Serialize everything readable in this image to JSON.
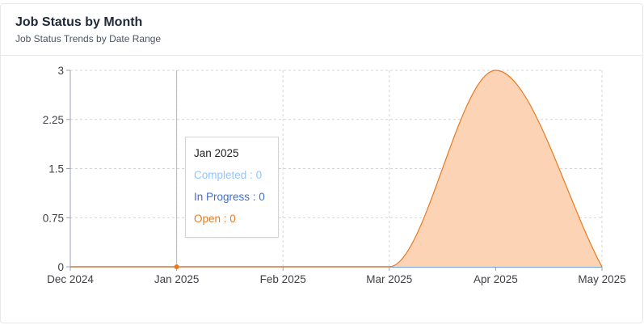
{
  "card": {
    "title": "Job Status by Month",
    "subtitle": "Job Status Trends by Date Range"
  },
  "tooltip": {
    "title": "Jan 2025",
    "rows": [
      {
        "label": "Completed",
        "value": "0",
        "color": "#93c5fd"
      },
      {
        "label": "In Progress",
        "value": "0",
        "color": "#3b6fd6"
      },
      {
        "label": "Open",
        "value": "0",
        "color": "#ea7a1f"
      }
    ]
  },
  "chart_data": {
    "type": "area",
    "x": [
      "Dec 2024",
      "Jan 2025",
      "Feb 2025",
      "Mar 2025",
      "Apr 2025",
      "May 2025"
    ],
    "y_ticks": [
      "0",
      "0.75",
      "1.5",
      "2.25",
      "3"
    ],
    "ylim": [
      0,
      3
    ],
    "grid": true,
    "series": [
      {
        "name": "Completed",
        "values": [
          0,
          0,
          0,
          0,
          0,
          0
        ],
        "color": "#93c5fd"
      },
      {
        "name": "In Progress",
        "values": [
          0,
          0,
          0,
          0,
          0,
          0
        ],
        "color": "#3b6fd6"
      },
      {
        "name": "Open",
        "values": [
          0,
          0,
          0,
          0,
          3,
          0
        ],
        "color": "#ea7a1f",
        "fill": "#fdd3b5"
      }
    ],
    "highlight_x": "Jan 2025"
  }
}
